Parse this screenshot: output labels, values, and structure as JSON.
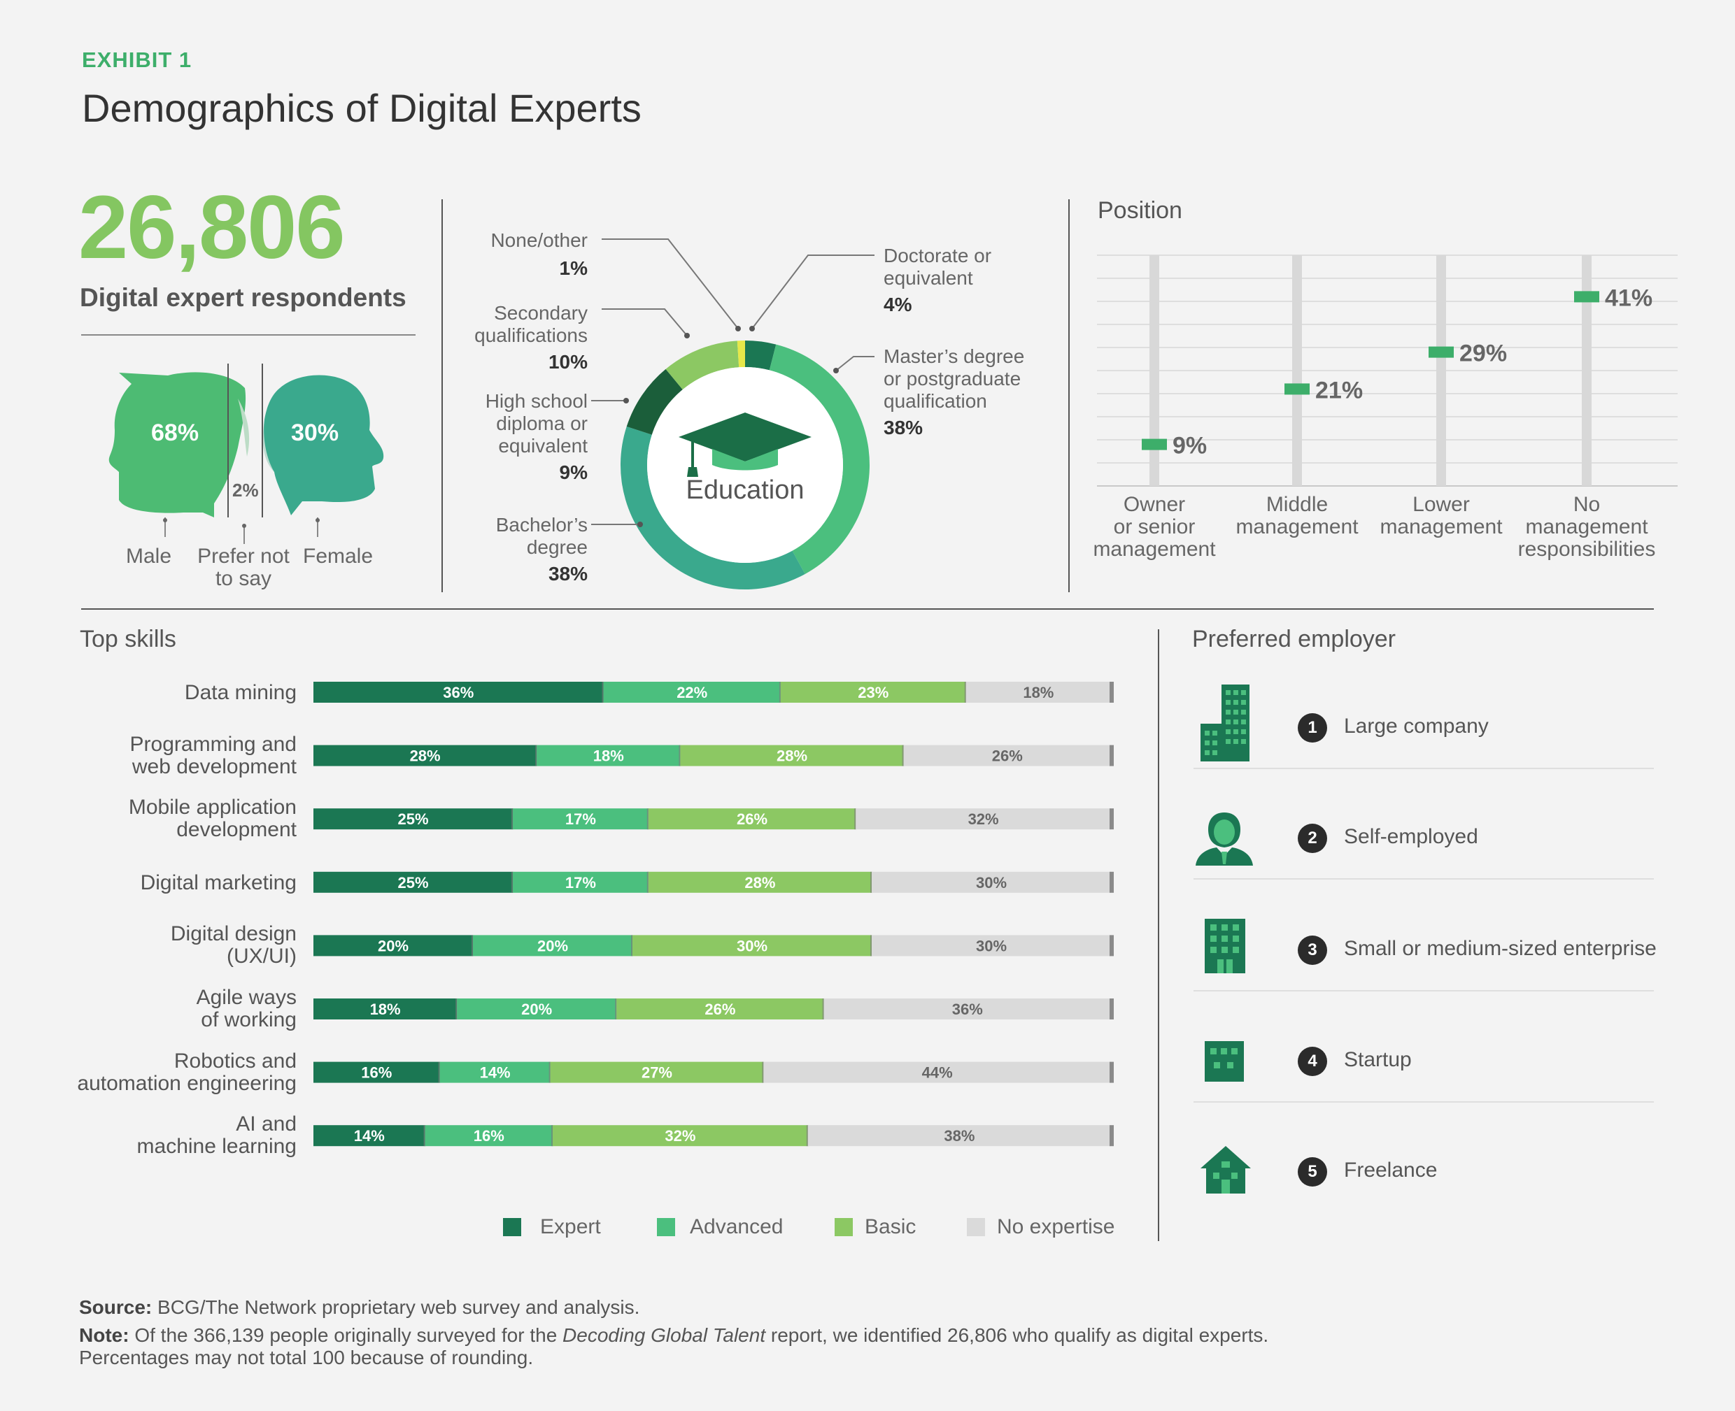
{
  "header": {
    "exhibit": "EXHIBIT 1",
    "title": "Demographics of Digital Experts"
  },
  "respondents": {
    "count": "26,806",
    "label": "Digital expert respondents"
  },
  "gender": {
    "male_pct": "68%",
    "female_pct": "30%",
    "prefer_pct": "2%",
    "male_label": "Male",
    "prefer_label_1": "Prefer not",
    "prefer_label_2": "to say",
    "female_label": "Female"
  },
  "education": {
    "center_label": "Education",
    "labels": {
      "none_1": "None/other",
      "none_pct": "1%",
      "secondary_1": "Secondary",
      "secondary_2": "qualifications",
      "secondary_pct": "10%",
      "highschool_1": "High school",
      "highschool_2": "diploma or",
      "highschool_3": "equivalent",
      "highschool_pct": "9%",
      "bachelor_1": "Bachelor’s",
      "bachelor_2": "degree",
      "bachelor_pct": "38%",
      "doctorate_1": "Doctorate or",
      "doctorate_2": "equivalent",
      "doctorate_pct": "4%",
      "masters_1": "Master’s degree",
      "masters_2": "or postgraduate",
      "masters_3": "qualification",
      "masters_pct": "38%"
    }
  },
  "position": {
    "title": "Position",
    "labels": [
      {
        "l1": "Owner",
        "l2": "or senior",
        "l3": "management"
      },
      {
        "l1": "Middle",
        "l2": "management",
        "l3": ""
      },
      {
        "l1": "Lower",
        "l2": "management",
        "l3": ""
      },
      {
        "l1": "No",
        "l2": "management",
        "l3": "responsibilities"
      }
    ]
  },
  "skills": {
    "title": "Top skills",
    "rows": [
      {
        "l1": "Data mining",
        "l2": ""
      },
      {
        "l1": "Programming and",
        "l2": "web development"
      },
      {
        "l1": "Mobile application",
        "l2": "development"
      },
      {
        "l1": "Digital marketing",
        "l2": ""
      },
      {
        "l1": "Digital design",
        "l2": "(UX/UI)"
      },
      {
        "l1": "Agile ways",
        "l2": "of working"
      },
      {
        "l1": "Robotics and",
        "l2": "automation engineering"
      },
      {
        "l1": "AI and",
        "l2": "machine learning"
      }
    ],
    "legend": [
      "Expert",
      "Advanced",
      "Basic",
      "No expertise"
    ]
  },
  "employer": {
    "title": "Preferred employer",
    "items": [
      {
        "num": "1",
        "label": "Large company",
        "icon": "large-building-icon"
      },
      {
        "num": "2",
        "label": "Self-employed",
        "icon": "person-icon"
      },
      {
        "num": "3",
        "label": "Small or medium-sized enterprise",
        "icon": "office-building-icon"
      },
      {
        "num": "4",
        "label": "Startup",
        "icon": "small-building-icon"
      },
      {
        "num": "5",
        "label": "Freelance",
        "icon": "house-icon"
      }
    ]
  },
  "footer": {
    "source_label": "Source:",
    "source_text": " BCG/The Network proprietary web survey and analysis.",
    "note_label": "Note:",
    "note_text_1": " Of the 366,139 people originally surveyed for the ",
    "note_italic": "Decoding Global Talent",
    "note_text_2": " report, we identified 26,806 who qualify as digital experts.",
    "note_line2": "Percentages may not total 100 because of rounding."
  },
  "colors": {
    "expert": "#1b7753",
    "advanced": "#4bbf7e",
    "basic": "#8cc863",
    "none": "#dadada",
    "male": "#4dbb73",
    "female": "#3aa98d"
  },
  "chart_data": [
    {
      "type": "pie",
      "title": "Education",
      "categories": [
        "Doctorate or equivalent",
        "Master’s degree or postgraduate qualification",
        "Bachelor’s degree",
        "High school diploma or equivalent",
        "Secondary qualifications",
        "None/other"
      ],
      "values": [
        4,
        38,
        38,
        9,
        10,
        1
      ]
    },
    {
      "type": "scatter",
      "title": "Position",
      "categories": [
        "Owner or senior management",
        "Middle management",
        "Lower management",
        "No management responsibilities"
      ],
      "values": [
        9,
        21,
        29,
        41
      ],
      "labels": [
        "9%",
        "21%",
        "29%",
        "41%"
      ],
      "ylim": [
        0,
        50
      ]
    },
    {
      "type": "bar",
      "title": "Top skills",
      "orientation": "horizontal",
      "stacked": true,
      "categories": [
        "Data mining",
        "Programming and web development",
        "Mobile application development",
        "Digital marketing",
        "Digital design (UX/UI)",
        "Agile ways of working",
        "Robotics and automation engineering",
        "AI and machine learning"
      ],
      "series": [
        {
          "name": "Expert",
          "values": [
            36,
            28,
            25,
            25,
            20,
            18,
            16,
            14
          ]
        },
        {
          "name": "Advanced",
          "values": [
            22,
            18,
            17,
            17,
            20,
            20,
            14,
            16
          ]
        },
        {
          "name": "Basic",
          "values": [
            23,
            28,
            26,
            28,
            30,
            26,
            27,
            32
          ]
        },
        {
          "name": "No expertise",
          "values": [
            18,
            26,
            32,
            30,
            30,
            36,
            44,
            38
          ]
        }
      ]
    }
  ]
}
